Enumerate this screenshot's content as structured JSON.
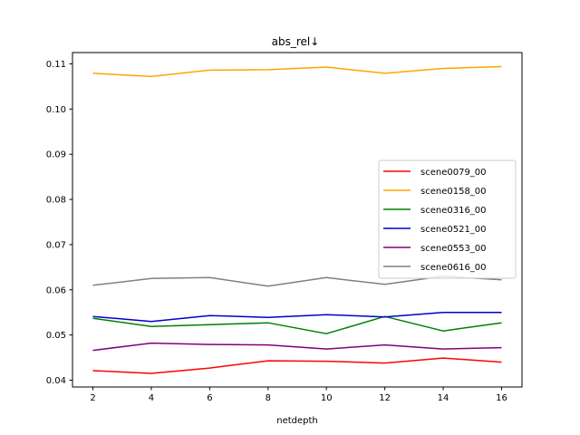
{
  "chart_data": {
    "type": "line",
    "title": "abs_rel↓",
    "xlabel": "netdepth",
    "ylabel": "",
    "x": [
      2,
      4,
      6,
      8,
      10,
      12,
      14,
      16
    ],
    "xticks": [
      "2",
      "4",
      "6",
      "8",
      "10",
      "12",
      "14",
      "16"
    ],
    "xlim": [
      1.3,
      16.7
    ],
    "ylim": [
      0.0385,
      0.1125
    ],
    "yticks": [
      "0.04",
      "0.05",
      "0.06",
      "0.07",
      "0.08",
      "0.09",
      "0.10",
      "0.11"
    ],
    "grid": false,
    "legend_position": "center-right",
    "series": [
      {
        "name": "scene0079_00",
        "color": "#ff0000",
        "values": [
          0.0421,
          0.0415,
          0.0427,
          0.0443,
          0.0442,
          0.0438,
          0.0449,
          0.044
        ]
      },
      {
        "name": "scene0158_00",
        "color": "#ffa500",
        "values": [
          0.1079,
          0.1072,
          0.1086,
          0.1087,
          0.1093,
          0.1079,
          0.109,
          0.1094
        ]
      },
      {
        "name": "scene0316_00",
        "color": "#008000",
        "values": [
          0.0537,
          0.0519,
          0.0523,
          0.0527,
          0.0503,
          0.0541,
          0.0509,
          0.0527
        ]
      },
      {
        "name": "scene0521_00",
        "color": "#0000cd",
        "values": [
          0.0541,
          0.053,
          0.0543,
          0.0539,
          0.0545,
          0.054,
          0.055,
          0.055
        ]
      },
      {
        "name": "scene0553_00",
        "color": "#800080",
        "values": [
          0.0466,
          0.0482,
          0.0479,
          0.0478,
          0.0469,
          0.0478,
          0.0469,
          0.0472
        ]
      },
      {
        "name": "scene0616_00",
        "color": "#808080",
        "values": [
          0.061,
          0.0625,
          0.0627,
          0.0608,
          0.0627,
          0.0612,
          0.063,
          0.0622
        ]
      }
    ]
  }
}
